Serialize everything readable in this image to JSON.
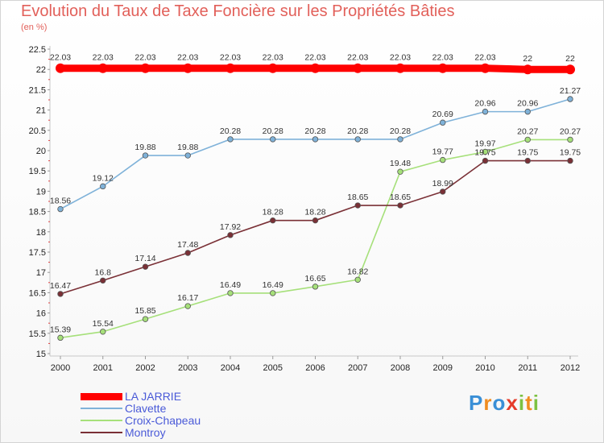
{
  "header": {
    "title": "Evolution du Taux de Taxe Foncière sur les Propriétés Bâties",
    "unit": "(en %)"
  },
  "chart_data": {
    "type": "line",
    "title": "Evolution du Taux de Taxe Foncière sur les Propriétés Bâties",
    "ylabel": "(en %)",
    "x": [
      "2000",
      "2001",
      "2002",
      "2003",
      "2004",
      "2005",
      "2006",
      "2007",
      "2008",
      "2009",
      "2010",
      "2011",
      "2012"
    ],
    "ylim": [
      15,
      22.5
    ],
    "yticks": [
      "15",
      "15.5",
      "16",
      "16.5",
      "17",
      "17.5",
      "18",
      "18.5",
      "19",
      "19.5",
      "20",
      "20.5",
      "21",
      "21.5",
      "22",
      "22.5"
    ],
    "grid": false,
    "legend": "bottom-left",
    "series": [
      {
        "name": "LA JARRIE",
        "color": "#ff0000",
        "values": [
          22.03,
          22.03,
          22.03,
          22.03,
          22.03,
          22.03,
          22.03,
          22.03,
          22.03,
          22.03,
          22.03,
          22,
          22
        ],
        "labels": [
          "22.03",
          "22.03",
          "22.03",
          "22.03",
          "22.03",
          "22.03",
          "22.03",
          "22.03",
          "22.03",
          "22.03",
          "22.03",
          "22",
          "22"
        ]
      },
      {
        "name": "Clavette",
        "color": "#7fb2d9",
        "values": [
          18.56,
          19.12,
          19.88,
          19.88,
          20.28,
          20.28,
          20.28,
          20.28,
          20.28,
          20.69,
          20.96,
          20.96,
          21.27
        ],
        "labels": [
          "18.56",
          "19.12",
          "19.88",
          "19.88",
          "20.28",
          "20.28",
          "20.28",
          "20.28",
          "20.28",
          "20.69",
          "20.96",
          "20.96",
          "21.27"
        ]
      },
      {
        "name": "Croix-Chapeau",
        "color": "#a6e07a",
        "values": [
          15.39,
          15.54,
          15.85,
          16.17,
          16.49,
          16.49,
          16.65,
          16.82,
          19.48,
          19.77,
          19.97,
          20.27,
          20.27
        ],
        "labels": [
          "15.39",
          "15.54",
          "15.85",
          "16.17",
          "16.49",
          "16.49",
          "16.65",
          "16.82",
          "19.48",
          "19.77",
          "19.97",
          "20.27",
          "20.27"
        ]
      },
      {
        "name": "Montroy",
        "color": "#7a3036",
        "values": [
          16.47,
          16.8,
          17.14,
          17.48,
          17.92,
          18.28,
          18.28,
          18.65,
          18.65,
          18.99,
          19.75,
          19.75,
          19.75
        ],
        "labels": [
          "16.47",
          "16.8",
          "17.14",
          "17.48",
          "17.92",
          "18.28",
          "18.28",
          "18.65",
          "18.65",
          "18.99",
          "19.75",
          "19.75",
          "19.75"
        ]
      }
    ]
  },
  "logo": {
    "text": "Proxiti"
  }
}
